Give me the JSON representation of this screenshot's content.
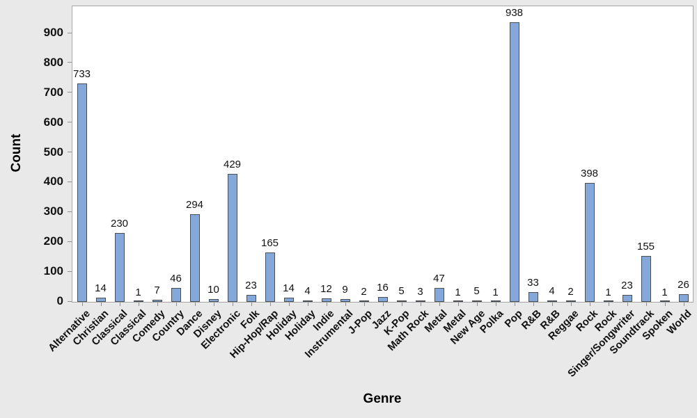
{
  "chart_data": {
    "type": "bar",
    "title": "",
    "xlabel": "Genre",
    "ylabel": "Count",
    "categories": [
      "Alternative",
      "Christian",
      "Classical",
      "Classical",
      "Comedy",
      "Country",
      "Dance",
      "Disney",
      "Electronic",
      "Folk",
      "Hip-Hop/Rap",
      "Holiday",
      "Holiday",
      "Indie",
      "Instrumental",
      "J-Pop",
      "Jazz",
      "K-Pop",
      "Math Rock",
      "Metal",
      "Metal",
      "New Age",
      "Polka",
      "Pop",
      "R&B",
      "R&B",
      "Reggae",
      "Rock",
      "Rock",
      "Singer/Songwriter",
      "Soundtrack",
      "Spoken",
      "World"
    ],
    "values": [
      733,
      14,
      230,
      1,
      7,
      46,
      294,
      10,
      429,
      23,
      165,
      14,
      4,
      12,
      9,
      2,
      16,
      5,
      3,
      47,
      1,
      5,
      1,
      938,
      33,
      4,
      2,
      398,
      1,
      23,
      155,
      1,
      26
    ],
    "bar_value_labels_shown": true,
    "yticks": [
      0,
      100,
      200,
      300,
      400,
      500,
      600,
      700,
      800,
      900
    ],
    "ylim": [
      0,
      991
    ],
    "grid": false,
    "legend_position": "none",
    "colors": {
      "background": "#e9e9e9",
      "plot_background": "#ffffff",
      "plot_border": "#a6a6a6",
      "axis_tick": "#8f8f8f",
      "bar_fill": "#84a8d9",
      "bar_border": "#4a4d52",
      "text": "#111111"
    }
  }
}
